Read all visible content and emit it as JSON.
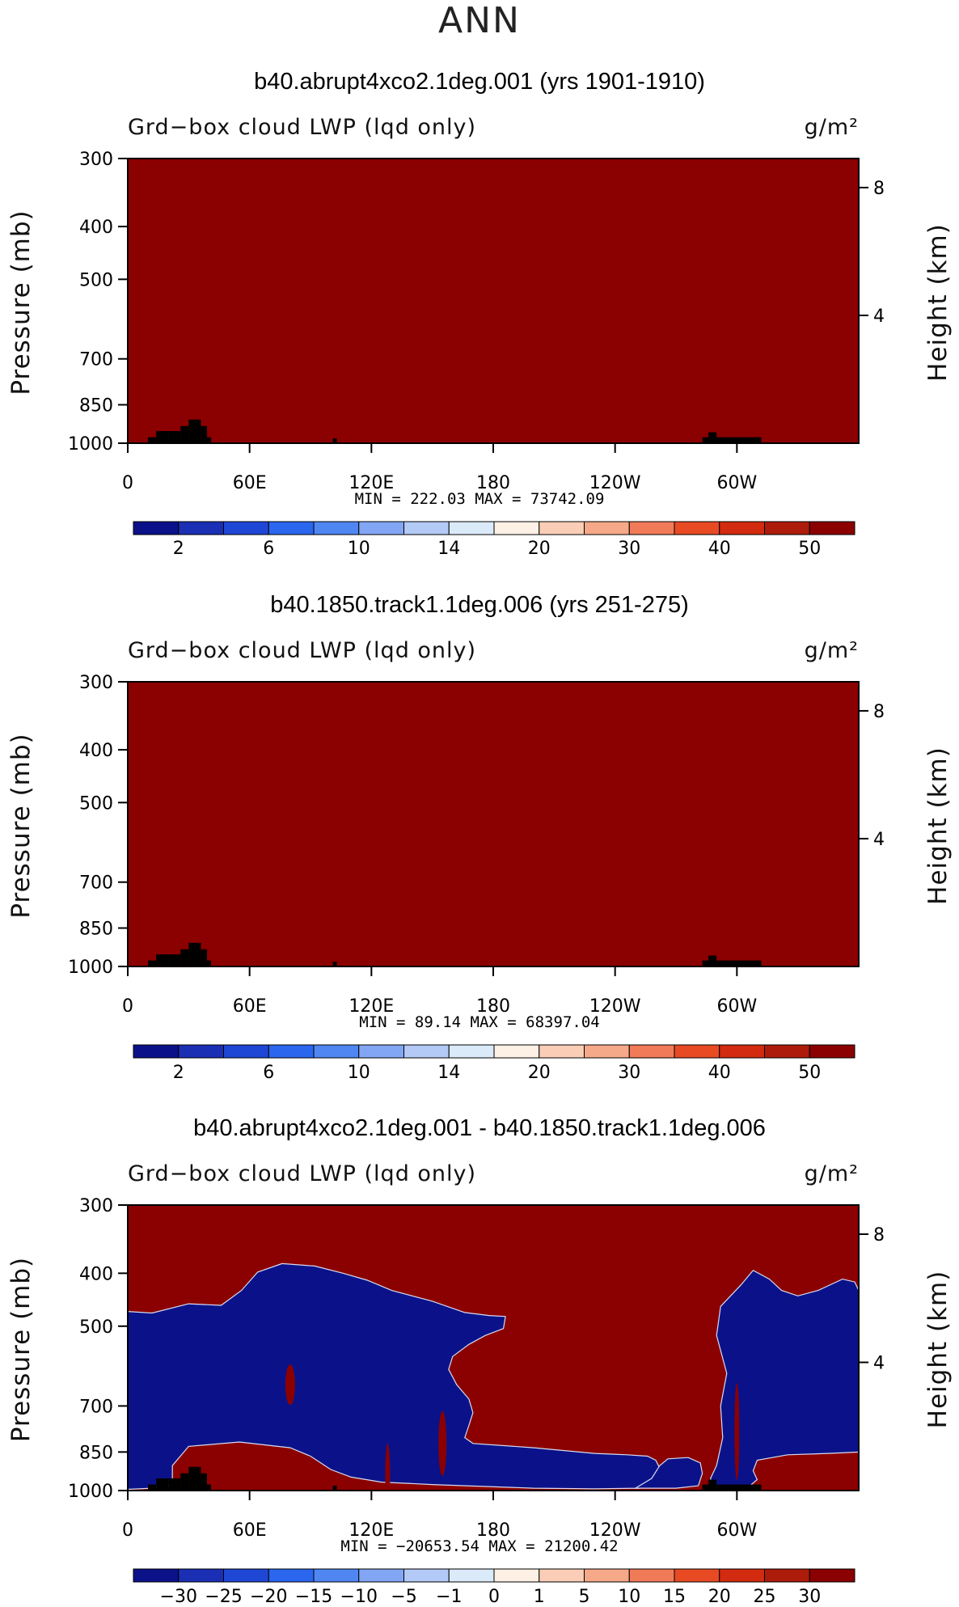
{
  "page": {
    "season": "ANN"
  },
  "colors": {
    "dark_red": "#8b0000",
    "navy": "#0b1289",
    "land": "#000000",
    "abs_colorbar": [
      "#0b1289",
      "#1a2fb4",
      "#1f47d6",
      "#2a66ee",
      "#4f86f2",
      "#82a6f4",
      "#b3c9f6",
      "#daeaf9",
      "#fdf0e4",
      "#f9cdb6",
      "#f5a988",
      "#f17a58",
      "#e84a24",
      "#d22b0f",
      "#ad1c0a",
      "#8b0000"
    ],
    "diff_colorbar": [
      "#0b1289",
      "#1a2fb4",
      "#1f47d6",
      "#2a66ee",
      "#4f86f2",
      "#82a6f4",
      "#b3c9f6",
      "#daeaf9",
      "#fdf0e4",
      "#f9cdb6",
      "#f5a988",
      "#f17a58",
      "#e84a24",
      "#d22b0f",
      "#ad1c0a",
      "#8b0000"
    ]
  },
  "chart_data": [
    {
      "type": "heatmap",
      "title": "b40.abrupt4xco2.1deg.001 (yrs 1901-1910)",
      "variable_label": "Grd−box cloud LWP (lqd only)",
      "units": "g/m²",
      "ylabel": "Pressure (mb)",
      "ylabel_right": "Height (km)",
      "x_ticks": [
        {
          "lon": 0,
          "label": "0"
        },
        {
          "lon": 60,
          "label": "60E"
        },
        {
          "lon": 120,
          "label": "120E"
        },
        {
          "lon": 180,
          "label": "180"
        },
        {
          "lon": 240,
          "label": "120W"
        },
        {
          "lon": 300,
          "label": "60W"
        }
      ],
      "xlim": [
        0,
        360
      ],
      "y_ticks": [
        300,
        400,
        500,
        700,
        850,
        1000
      ],
      "ylim": [
        1000,
        300
      ],
      "height_ticks": [
        {
          "km": 4,
          "label": "4"
        },
        {
          "km": 8,
          "label": "8"
        }
      ],
      "min_max_label": "MIN =  222.03   MAX = 73742.09",
      "min": 222.03,
      "max": 73742.09,
      "colorbar_labels": [
        "2",
        "6",
        "10",
        "14",
        "20",
        "30",
        "40",
        "50"
      ],
      "field": "uniform field above 50 g/m² (dark red) everywhere; black masked topography near 10–40E, 100E and 57–72W"
    },
    {
      "type": "heatmap",
      "title": "b40.1850.track1.1deg.006 (yrs 251-275)",
      "variable_label": "Grd−box cloud LWP (lqd only)",
      "units": "g/m²",
      "ylabel": "Pressure (mb)",
      "ylabel_right": "Height (km)",
      "x_ticks": [
        {
          "lon": 0,
          "label": "0"
        },
        {
          "lon": 60,
          "label": "60E"
        },
        {
          "lon": 120,
          "label": "120E"
        },
        {
          "lon": 180,
          "label": "180"
        },
        {
          "lon": 240,
          "label": "120W"
        },
        {
          "lon": 300,
          "label": "60W"
        }
      ],
      "xlim": [
        0,
        360
      ],
      "y_ticks": [
        300,
        400,
        500,
        700,
        850,
        1000
      ],
      "ylim": [
        1000,
        300
      ],
      "height_ticks": [
        {
          "km": 4,
          "label": "4"
        },
        {
          "km": 8,
          "label": "8"
        }
      ],
      "min_max_label": "MIN =   89.14   MAX = 68397.04",
      "min": 89.14,
      "max": 68397.04,
      "colorbar_labels": [
        "2",
        "6",
        "10",
        "14",
        "20",
        "30",
        "40",
        "50"
      ],
      "field": "uniform field above 50 g/m² (dark red) everywhere; black masked topography near 10–40E, 100E and 57–72W"
    },
    {
      "type": "heatmap",
      "title": "b40.abrupt4xco2.1deg.001 - b40.1850.track1.1deg.006",
      "variable_label": "Grd−box cloud LWP (lqd only)",
      "units": "g/m²",
      "ylabel": "Pressure (mb)",
      "ylabel_right": "Height (km)",
      "x_ticks": [
        {
          "lon": 0,
          "label": "0"
        },
        {
          "lon": 60,
          "label": "60E"
        },
        {
          "lon": 120,
          "label": "120E"
        },
        {
          "lon": 180,
          "label": "180"
        },
        {
          "lon": 240,
          "label": "120W"
        },
        {
          "lon": 300,
          "label": "60W"
        }
      ],
      "xlim": [
        0,
        360
      ],
      "y_ticks": [
        300,
        400,
        500,
        700,
        850,
        1000
      ],
      "ylim": [
        1000,
        300
      ],
      "height_ticks": [
        {
          "km": 4,
          "label": "4"
        },
        {
          "km": 8,
          "label": "8"
        }
      ],
      "min_max_label": "MIN = −20653.54   MAX = 21200.42",
      "min": -20653.54,
      "max": 21200.42,
      "colorbar_labels": [
        "−30",
        "−25",
        "−20",
        "−15",
        "−10",
        "−5",
        "−1",
        "0",
        "1",
        "5",
        "10",
        "15",
        "20",
        "25",
        "30"
      ],
      "field": "positive (dark red) background; large negative (navy) regions over 0–185E, a low-level tongue 140E–135W, and 57W–360 aloft",
      "negative_region_outlines": [
        [
          [
            0,
            470
          ],
          [
            12,
            473
          ],
          [
            30,
            455
          ],
          [
            46,
            458
          ],
          [
            56,
            430
          ],
          [
            64,
            398
          ],
          [
            76,
            384
          ],
          [
            92,
            388
          ],
          [
            106,
            400
          ],
          [
            118,
            412
          ],
          [
            130,
            430
          ],
          [
            150,
            450
          ],
          [
            166,
            472
          ],
          [
            178,
            478
          ],
          [
            186,
            480
          ],
          [
            185,
            505
          ],
          [
            176,
            520
          ],
          [
            168,
            540
          ],
          [
            160,
            568
          ],
          [
            158,
            600
          ],
          [
            162,
            640
          ],
          [
            168,
            680
          ],
          [
            170,
            720
          ],
          [
            168,
            760
          ],
          [
            166,
            800
          ],
          [
            170,
            820
          ],
          [
            200,
            835
          ],
          [
            230,
            855
          ],
          [
            246,
            860
          ],
          [
            256,
            865
          ],
          [
            260,
            880
          ],
          [
            262,
            910
          ],
          [
            265,
            940
          ],
          [
            262,
            975
          ],
          [
            252,
            990
          ],
          [
            230,
            993
          ],
          [
            200,
            990
          ],
          [
            150,
            975
          ],
          [
            125,
            965
          ],
          [
            110,
            945
          ],
          [
            100,
            915
          ],
          [
            90,
            865
          ],
          [
            80,
            835
          ],
          [
            55,
            815
          ],
          [
            30,
            830
          ],
          [
            22,
            900
          ],
          [
            22,
            975
          ],
          [
            12,
            990
          ],
          [
            0,
            995
          ]
        ],
        [
          [
            250,
            990
          ],
          [
            258,
            950
          ],
          [
            262,
            900
          ],
          [
            266,
            875
          ],
          [
            276,
            870
          ],
          [
            282,
            890
          ],
          [
            283,
            930
          ],
          [
            281,
            980
          ],
          [
            270,
            990
          ]
        ],
        [
          [
            287,
            950
          ],
          [
            290,
            900
          ],
          [
            293,
            800
          ],
          [
            292,
            700
          ],
          [
            295,
            610
          ],
          [
            290,
            520
          ],
          [
            292,
            460
          ],
          [
            302,
            420
          ],
          [
            308,
            395
          ],
          [
            316,
            410
          ],
          [
            322,
            430
          ],
          [
            330,
            440
          ],
          [
            340,
            430
          ],
          [
            352,
            410
          ],
          [
            358,
            415
          ],
          [
            360,
            430
          ],
          [
            360,
            850
          ],
          [
            345,
            855
          ],
          [
            325,
            860
          ],
          [
            310,
            880
          ],
          [
            308,
            920
          ],
          [
            310,
            955
          ],
          [
            305,
            990
          ],
          [
            295,
            993
          ],
          [
            288,
            980
          ]
        ]
      ]
    }
  ]
}
